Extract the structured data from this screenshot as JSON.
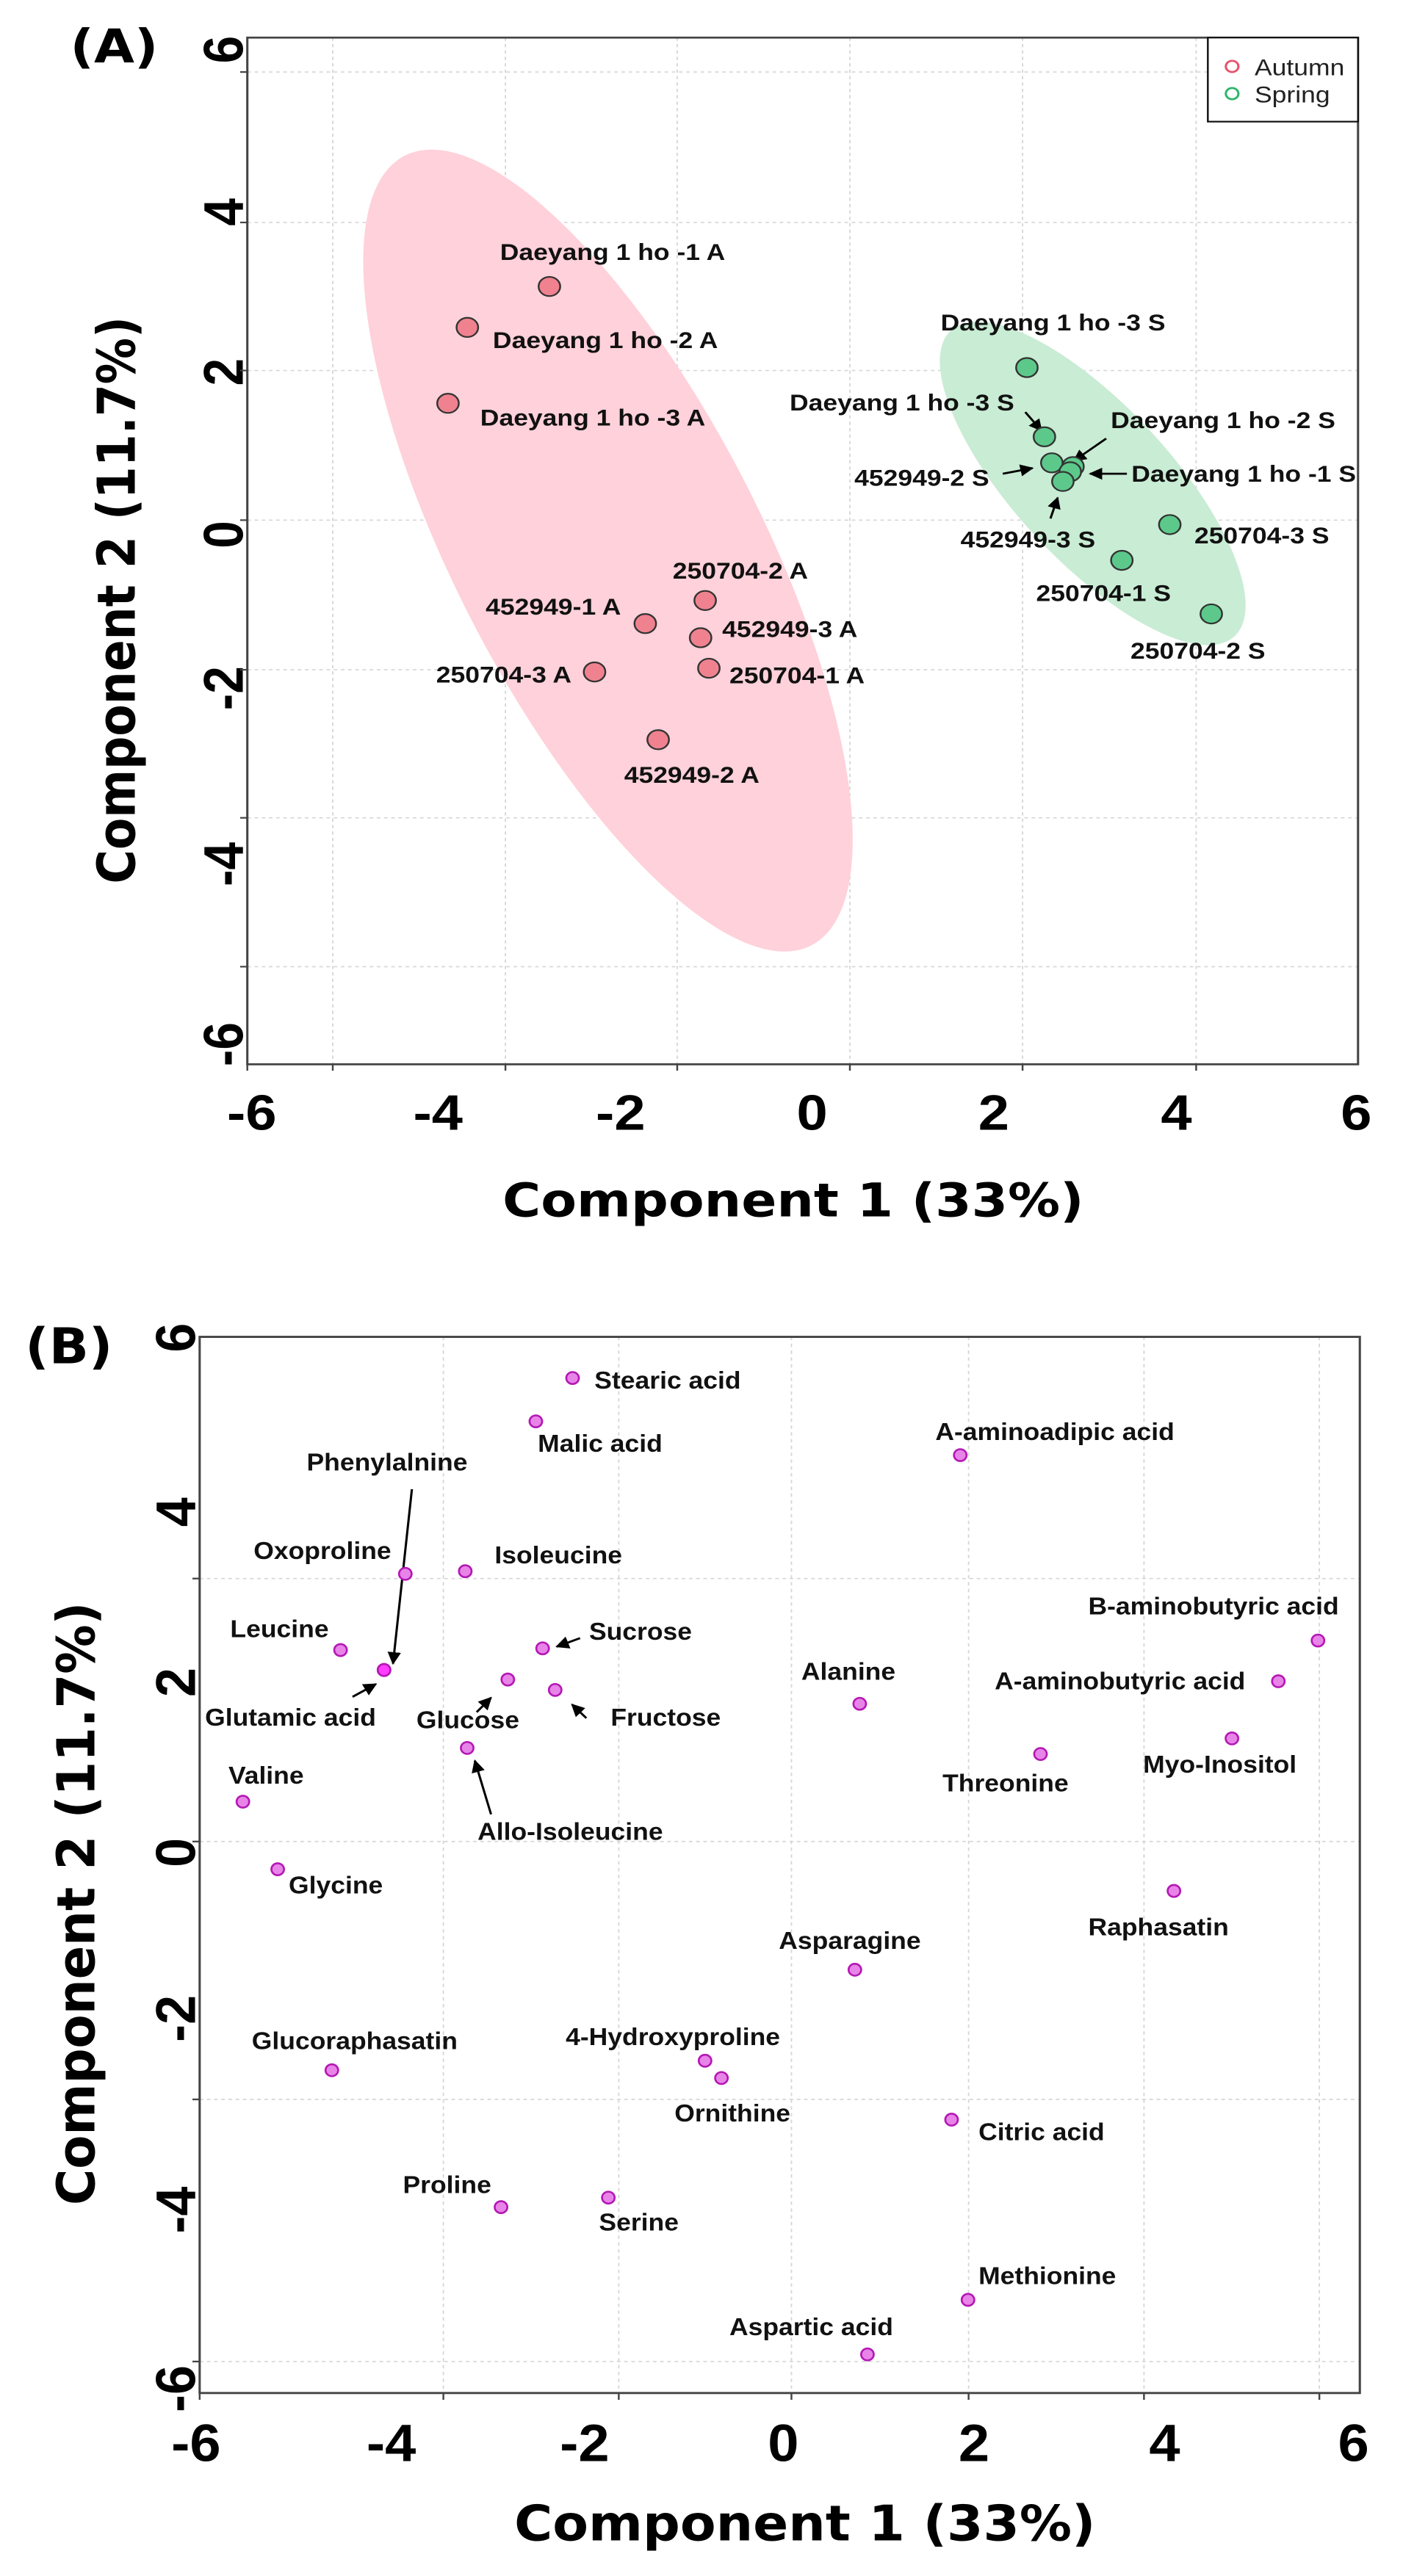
{
  "chart_data": [
    {
      "type": "scatter",
      "panel_label": "(A)",
      "xlabel": "Component 1 (33%)",
      "ylabel": "Component 2 (11.7%)",
      "xlim": [
        -6,
        6
      ],
      "ylim": [
        -6,
        6
      ],
      "xticks": [
        "-6",
        "-4",
        "-2",
        "0",
        "2",
        "4",
        "6"
      ],
      "yticks": [
        "6",
        "4",
        "2",
        "0",
        "-2",
        "-4",
        "-6"
      ],
      "grid": true,
      "legend_position": "top-right",
      "legend": [
        {
          "label": "Autumn",
          "color": "#e8506a"
        },
        {
          "label": "Spring",
          "color": "#2fb56a"
        }
      ],
      "series": [
        {
          "name": "Autumn",
          "color": "#f0828f",
          "ellipse_color": "#ffd1da",
          "points": [
            {
              "label": "Daeyang 1 ho -1 A",
              "x": -2.85,
              "y": 3.14
            },
            {
              "label": "Daeyang 1 ho -2 A",
              "x": -3.74,
              "y": 2.59
            },
            {
              "label": "Daeyang 1 ho -3 A",
              "x": -3.95,
              "y": 1.57
            },
            {
              "label": "250704-2 A",
              "x": -1.16,
              "y": -1.08
            },
            {
              "label": "452949-1 A",
              "x": -1.81,
              "y": -1.39
            },
            {
              "label": "452949-3 A",
              "x": -1.21,
              "y": -1.58
            },
            {
              "label": "250704-3 A",
              "x": -2.36,
              "y": -2.04
            },
            {
              "label": "250704-1 A",
              "x": -1.12,
              "y": -1.99
            },
            {
              "label": "452949-2 A",
              "x": -1.67,
              "y": -2.95
            }
          ]
        },
        {
          "name": "Spring",
          "color": "#5cc98b",
          "ellipse_color": "#c9ecd4",
          "points": [
            {
              "label": "Daeyang 1 ho -3 S",
              "x": 2.33,
              "y": 2.05
            },
            {
              "label": "Daeyang 1 ho -3 S",
              "x": 2.52,
              "y": 1.12
            },
            {
              "label": "452949-2 S",
              "x": 2.6,
              "y": 0.77
            },
            {
              "label": "Daeyang 1 ho -2 S",
              "x": 2.83,
              "y": 0.72
            },
            {
              "label": "Daeyang 1 ho -1 S",
              "x": 2.8,
              "y": 0.65
            },
            {
              "label": "452949-3 S",
              "x": 2.72,
              "y": 0.52
            },
            {
              "label": "250704-3 S",
              "x": 3.88,
              "y": -0.06
            },
            {
              "label": "250704-1 S",
              "x": 3.36,
              "y": -0.54
            },
            {
              "label": "250704-2 S",
              "x": 4.33,
              "y": -1.26
            }
          ]
        }
      ]
    },
    {
      "type": "scatter",
      "panel_label": "(B)",
      "xlabel": "Component 1 (33%)",
      "ylabel": "Component 2 (11.7%)",
      "xlim": [
        -6,
        6
      ],
      "ylim": [
        -6,
        6
      ],
      "xticks": [
        "-6",
        "-4",
        "-2",
        "0",
        "2",
        "4",
        "6"
      ],
      "yticks": [
        "6",
        "4",
        "2",
        "0",
        "-2",
        "-4",
        "-6"
      ],
      "grid": true,
      "series": [
        {
          "name": "Metabolites",
          "color": "#e884e8",
          "points": [
            {
              "label": "Stearic acid",
              "x": -2.18,
              "y": 5.35
            },
            {
              "label": "Malic acid",
              "x": -2.56,
              "y": 4.85
            },
            {
              "label": "A-aminoadipic acid",
              "x": 1.83,
              "y": 4.46
            },
            {
              "label": "Phenylalnine",
              "x": -4.13,
              "y": 1.98
            },
            {
              "label": "Oxoproline",
              "x": -3.91,
              "y": 3.09
            },
            {
              "label": "Isoleucine",
              "x": -3.29,
              "y": 3.12
            },
            {
              "label": "Leucine",
              "x": -4.58,
              "y": 2.21
            },
            {
              "label": "Sucrose",
              "x": -2.49,
              "y": 2.23
            },
            {
              "label": "B-aminobutyric acid",
              "x": 5.53,
              "y": 2.32
            },
            {
              "label": "Alanine",
              "x": 0.79,
              "y": 1.59
            },
            {
              "label": "A-aminobutyric acid",
              "x": 5.12,
              "y": 1.85
            },
            {
              "label": "Glutamic acid",
              "x": -4.13,
              "y": 1.98
            },
            {
              "label": "Glucose",
              "x": -2.85,
              "y": 1.87
            },
            {
              "label": "Fructose",
              "x": -2.36,
              "y": 1.75
            },
            {
              "label": "Threonine",
              "x": 2.66,
              "y": 1.01
            },
            {
              "label": "Myo-Inositol",
              "x": 4.64,
              "y": 1.19
            },
            {
              "label": "Valine",
              "x": -5.59,
              "y": 0.46
            },
            {
              "label": "Allo-Isoleucine",
              "x": -3.27,
              "y": 1.08
            },
            {
              "label": "Glycine",
              "x": -5.23,
              "y": -0.32
            },
            {
              "label": "Raphasatin",
              "x": 4.04,
              "y": -0.57
            },
            {
              "label": "Asparagine",
              "x": 0.74,
              "y": -1.48
            },
            {
              "label": "Glucoraphasatin",
              "x": -4.67,
              "y": -2.64
            },
            {
              "label": "4-Hydroxyproline",
              "x": -0.81,
              "y": -2.53
            },
            {
              "label": "Ornithine",
              "x": -0.64,
              "y": -2.73
            },
            {
              "label": "Citric acid",
              "x": 1.74,
              "y": -3.21
            },
            {
              "label": "Proline",
              "x": -2.92,
              "y": -4.22
            },
            {
              "label": "Serine",
              "x": -1.81,
              "y": -4.11
            },
            {
              "label": "Methionine",
              "x": 1.91,
              "y": -5.29
            },
            {
              "label": "Aspartic acid",
              "x": 0.87,
              "y": -5.92
            }
          ]
        }
      ]
    }
  ]
}
